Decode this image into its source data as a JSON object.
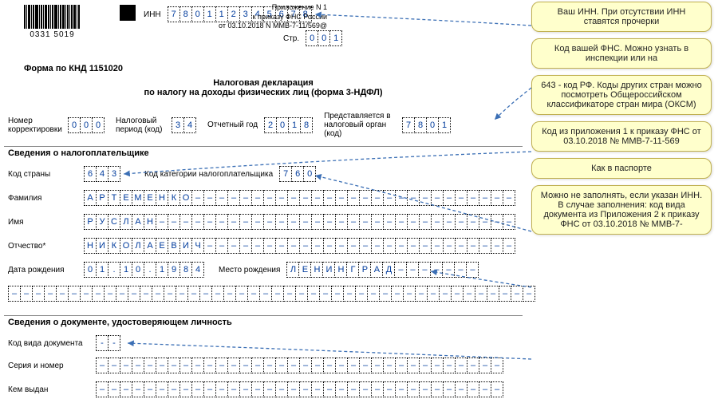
{
  "header": {
    "inn_label": "ИНН",
    "inn": "780112345678",
    "page_label": "Стр.",
    "page": "001",
    "appendix_lines": [
      "Приложение N 1",
      "к приказу ФНС России",
      "от 03.10.2018 N ММВ-7-11/569@"
    ],
    "barcode_number": "0331 5019"
  },
  "form": {
    "code_line": "Форма по КНД 1151020",
    "title1": "Налоговая декларация",
    "title2": "по налогу на доходы физических лиц (форма 3-НДФЛ)",
    "corr_label": "Номер\nкорректировки",
    "corr": "000",
    "period_label": "Налоговый\nпериод (код)",
    "period": "34",
    "year_label": "Отчетный год",
    "year": "2018",
    "organ_label": "Представляется в\nналоговый орган (код)",
    "organ": "7801"
  },
  "taxpayer": {
    "section": "Сведения о налогоплательщике",
    "country_label": "Код страны",
    "country": "643",
    "cat_label": "Код категории налогоплательщика",
    "cat": "760",
    "lastname_label": "Фамилия",
    "lastname": "АРТЕМЕНКО",
    "firstname_label": "Имя",
    "firstname": "РУСЛАН",
    "patronymic_label": "Отчество*",
    "patronymic": "НИКОЛАЕВИЧ",
    "dob_label": "Дата рождения",
    "dob": "01.10.1984",
    "birthplace_label": "Место рождения",
    "birthplace": "ЛЕНИНГРАД"
  },
  "doc": {
    "section": "Сведения о документе, удостоверяющем личность",
    "type_label": "Код вида документа",
    "type": "--",
    "serial_label": "Серия и номер",
    "issued_label": "Кем выдан"
  },
  "notes": {
    "n1": "Ваш ИНН. При отсутствии ИНН ставятся прочерки",
    "n2": "Код вашей ФНС. Можно узнать в инспекции или на",
    "n3": "643 - код РФ. Коды других стран можно посмотреть Общероссийском классификаторе стран мира (ОКСМ)",
    "n4": "Код из приложения 1 к приказу ФНС от 03.10.2018 № ММВ-7-11-569",
    "n5": "Как в паспорте",
    "n6": "Можно не заполнять, если указан ИНН. В случае заполнения: код вида документа из Приложения 2 к приказу ФНС от 03.10.2018 № ММВ-7-"
  },
  "styling": {
    "cell_text_color": "#003b9c",
    "cell_border": "dotted",
    "note_bg": "#ffffcc",
    "note_border": "#c0b050",
    "arrow_color": "#3b6fb5",
    "long_field_cells": 36,
    "country_cells": 3,
    "cat_cells": 3,
    "corr_cells": 3,
    "period_cells": 2,
    "year_cells": 4,
    "organ_cells": 4,
    "inn_cells": 12,
    "page_cells": 3,
    "dob_cells": 10,
    "doctype_cells": 2
  }
}
